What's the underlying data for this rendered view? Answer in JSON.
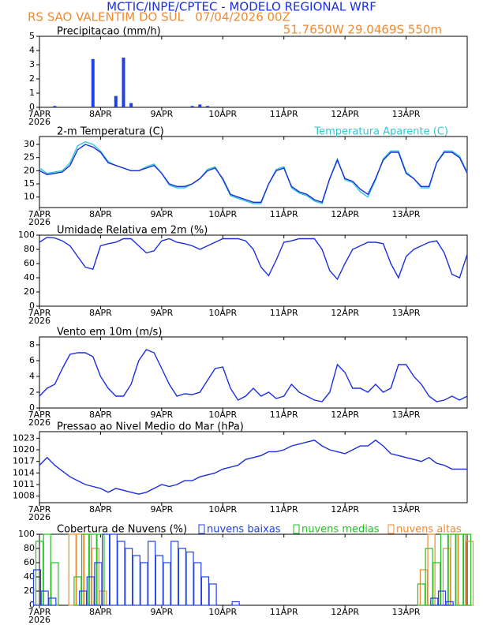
{
  "header": {
    "title": "MCTIC/INPE/CPTEC - MODELO REGIONAL WRF",
    "run": "RS SAO VALENTIM DO SUL   07/04/2026 00Z",
    "location": "51.7650W 29.0469S 550m"
  },
  "chart_data": [
    {
      "type": "bar",
      "title": "Precipitacao (mm/h)",
      "color": "#2040e8",
      "filled": true,
      "x": [
        0,
        3,
        6,
        9,
        12,
        15,
        18,
        21,
        24,
        27,
        30,
        33,
        36,
        39,
        42,
        45,
        48,
        51,
        54,
        57,
        60,
        63,
        66,
        69,
        72,
        75,
        78,
        81,
        84,
        87,
        90,
        93,
        96,
        99,
        102,
        105,
        108,
        111,
        114,
        117,
        120,
        123,
        126,
        129,
        132,
        135,
        138,
        141,
        144,
        147,
        150,
        153,
        156,
        159,
        162,
        165,
        168
      ],
      "values": [
        0,
        0,
        0.1,
        0,
        0,
        0,
        0,
        3.4,
        0,
        0,
        0.8,
        3.5,
        0.3,
        0,
        0,
        0,
        0,
        0,
        0,
        0,
        0.1,
        0.2,
        0.1,
        0,
        0,
        0,
        0,
        0,
        0,
        0,
        0,
        0,
        0,
        0,
        0,
        0,
        0,
        0,
        0,
        0,
        0,
        0,
        0,
        0,
        0,
        0,
        0,
        0,
        0,
        0,
        0,
        0,
        0,
        0,
        0,
        0,
        0
      ],
      "ylim": [
        0,
        5
      ],
      "yticks": [
        0,
        1,
        2,
        3,
        4,
        5
      ],
      "xlim": [
        0,
        168
      ],
      "xticks": [
        {
          "value": 0,
          "label": "7APR"
        },
        {
          "value": 24,
          "label": "8APR"
        },
        {
          "value": 48,
          "label": "9APR"
        },
        {
          "value": 72,
          "label": "10APR"
        },
        {
          "value": 96,
          "label": "11APR"
        },
        {
          "value": 120,
          "label": "12APR"
        },
        {
          "value": 144,
          "label": "13APR"
        }
      ],
      "year": "2026"
    },
    {
      "type": "line",
      "x": [
        0,
        3,
        6,
        9,
        12,
        15,
        18,
        21,
        24,
        27,
        30,
        33,
        36,
        39,
        42,
        45,
        48,
        51,
        54,
        57,
        60,
        63,
        66,
        69,
        72,
        75,
        78,
        81,
        84,
        87,
        90,
        93,
        96,
        99,
        102,
        105,
        108,
        111,
        114,
        117,
        120,
        123,
        126,
        129,
        132,
        135,
        138,
        141,
        144,
        147,
        150,
        153,
        156,
        159,
        162,
        165,
        168
      ],
      "series": [
        {
          "name": "2-m Temperatura (C)",
          "color": "#1a2ee0",
          "label_color": "#000000",
          "values": [
            20,
            18.5,
            19,
            19.5,
            22,
            28,
            30,
            29,
            27,
            23,
            22,
            21,
            20,
            20,
            21,
            22,
            19,
            15,
            14,
            14,
            15,
            17,
            20,
            21,
            17,
            11,
            10,
            9,
            8,
            8,
            15,
            20,
            21,
            14,
            12,
            11,
            9,
            8,
            17,
            24,
            17,
            16,
            13,
            11,
            17,
            24,
            27,
            27,
            19,
            17,
            14,
            14,
            23,
            27,
            27,
            25,
            19
          ]
        },
        {
          "name": "Temperatura Aparente (C)",
          "color": "#30c8d0",
          "label_color": "#30c8d0",
          "values": [
            21,
            19,
            19.5,
            20,
            23,
            29.5,
            31,
            30,
            27.5,
            23.5,
            22,
            21,
            20,
            20,
            21.5,
            22.5,
            19,
            14.5,
            13.5,
            13.5,
            15,
            17,
            20.5,
            21.5,
            16.5,
            10.5,
            9.5,
            8.5,
            7.5,
            7.5,
            15,
            20.5,
            21.5,
            13.5,
            11.5,
            10.5,
            8.5,
            7.5,
            17,
            24.5,
            16.5,
            15.5,
            12,
            10,
            16.5,
            24.5,
            27.5,
            27.5,
            19.5,
            17,
            13.5,
            13.5,
            23,
            27.5,
            27.5,
            25.5,
            19.5
          ]
        }
      ],
      "ylim": [
        6,
        33
      ],
      "yticks": [
        10,
        15,
        20,
        25,
        30
      ],
      "xlim": [
        0,
        168
      ],
      "xticks": [
        {
          "value": 0,
          "label": "7APR"
        },
        {
          "value": 24,
          "label": "8APR"
        },
        {
          "value": 48,
          "label": "9APR"
        },
        {
          "value": 72,
          "label": "10APR"
        },
        {
          "value": 96,
          "label": "11APR"
        },
        {
          "value": 120,
          "label": "12APR"
        },
        {
          "value": 144,
          "label": "13APR"
        }
      ],
      "year": "2026"
    },
    {
      "type": "line",
      "title": "Umidade Relativa em 2m (%)",
      "color": "#1a2ee0",
      "x": [
        0,
        3,
        6,
        9,
        12,
        15,
        18,
        21,
        24,
        27,
        30,
        33,
        36,
        39,
        42,
        45,
        48,
        51,
        54,
        57,
        60,
        63,
        66,
        69,
        72,
        75,
        78,
        81,
        84,
        87,
        90,
        93,
        96,
        99,
        102,
        105,
        108,
        111,
        114,
        117,
        120,
        123,
        126,
        129,
        132,
        135,
        138,
        141,
        144,
        147,
        150,
        153,
        156,
        159,
        162,
        165,
        168
      ],
      "values": [
        90,
        97,
        96,
        92,
        85,
        70,
        55,
        52,
        85,
        88,
        90,
        95,
        95,
        85,
        75,
        78,
        92,
        95,
        90,
        88,
        85,
        80,
        85,
        90,
        95,
        95,
        95,
        92,
        80,
        55,
        43,
        65,
        90,
        92,
        95,
        95,
        95,
        80,
        50,
        38,
        60,
        80,
        85,
        90,
        90,
        88,
        60,
        40,
        70,
        80,
        85,
        90,
        92,
        75,
        45,
        40,
        73
      ],
      "ylim": [
        0,
        100
      ],
      "yticks": [
        0,
        20,
        40,
        60,
        80,
        100
      ],
      "xlim": [
        0,
        168
      ],
      "xticks": [
        {
          "value": 0,
          "label": "7APR"
        },
        {
          "value": 24,
          "label": "8APR"
        },
        {
          "value": 48,
          "label": "9APR"
        },
        {
          "value": 72,
          "label": "10APR"
        },
        {
          "value": 96,
          "label": "11APR"
        },
        {
          "value": 120,
          "label": "12APR"
        },
        {
          "value": 144,
          "label": "13APR"
        }
      ],
      "year": "2026"
    },
    {
      "type": "line",
      "title": "Vento em 10m (m/s)",
      "color": "#1a2ee0",
      "x": [
        0,
        3,
        6,
        9,
        12,
        15,
        18,
        21,
        24,
        27,
        30,
        33,
        36,
        39,
        42,
        45,
        48,
        51,
        54,
        57,
        60,
        63,
        66,
        69,
        72,
        75,
        78,
        81,
        84,
        87,
        90,
        93,
        96,
        99,
        102,
        105,
        108,
        111,
        114,
        117,
        120,
        123,
        126,
        129,
        132,
        135,
        138,
        141,
        144,
        147,
        150,
        153,
        156,
        159,
        162,
        165,
        168
      ],
      "values": [
        1.5,
        2.5,
        3,
        5,
        6.8,
        7,
        7,
        6.5,
        4,
        2.5,
        1.5,
        1.5,
        3,
        6,
        7.4,
        7,
        5,
        3,
        1.5,
        1.8,
        1.7,
        2,
        3.5,
        5,
        5.2,
        2.5,
        1,
        1.5,
        2.5,
        1.5,
        2,
        1.2,
        1.5,
        3,
        2,
        1.5,
        1,
        0.8,
        2,
        5.5,
        4.5,
        2.5,
        2.5,
        2,
        3,
        2,
        2.5,
        5.5,
        5.5,
        4,
        3,
        1.5,
        0.8,
        1,
        1.5,
        1,
        1.5
      ],
      "ylim": [
        0,
        9
      ],
      "yticks": [
        0,
        2,
        4,
        6,
        8
      ],
      "xlim": [
        0,
        168
      ],
      "xticks": [
        {
          "value": 0,
          "label": "7APR"
        },
        {
          "value": 24,
          "label": "8APR"
        },
        {
          "value": 48,
          "label": "9APR"
        },
        {
          "value": 72,
          "label": "10APR"
        },
        {
          "value": 96,
          "label": "11APR"
        },
        {
          "value": 120,
          "label": "12APR"
        },
        {
          "value": 144,
          "label": "13APR"
        }
      ],
      "year": "2026"
    },
    {
      "type": "line",
      "title": "Pressao ao Nivel Medio do Mar (hPa)",
      "color": "#1a2ee0",
      "x": [
        0,
        3,
        6,
        9,
        12,
        15,
        18,
        21,
        24,
        27,
        30,
        33,
        36,
        39,
        42,
        45,
        48,
        51,
        54,
        57,
        60,
        63,
        66,
        69,
        72,
        75,
        78,
        81,
        84,
        87,
        90,
        93,
        96,
        99,
        102,
        105,
        108,
        111,
        114,
        117,
        120,
        123,
        126,
        129,
        132,
        135,
        138,
        141,
        144,
        147,
        150,
        153,
        156,
        159,
        162,
        165,
        168
      ],
      "values": [
        1016,
        1018,
        1016,
        1014.5,
        1013,
        1012,
        1011,
        1010.5,
        1010,
        1009,
        1010,
        1009.5,
        1009,
        1008.5,
        1009,
        1010,
        1011,
        1010.5,
        1011,
        1012,
        1012,
        1013,
        1013.5,
        1014,
        1015,
        1015.5,
        1016,
        1017.5,
        1018,
        1018.5,
        1019.5,
        1019.5,
        1020,
        1021,
        1021.5,
        1022,
        1022.5,
        1021,
        1020,
        1019.5,
        1019,
        1020,
        1021,
        1021,
        1022.5,
        1021,
        1019,
        1018.5,
        1018,
        1017.5,
        1017,
        1018,
        1016.5,
        1016,
        1015,
        1015,
        1015
      ],
      "ylim": [
        1006.3,
        1024.7
      ],
      "yticks": [
        1008,
        1011,
        1014,
        1017,
        1020,
        1023
      ],
      "xlim": [
        0,
        168
      ],
      "xticks": [
        {
          "value": 0,
          "label": "7APR"
        },
        {
          "value": 24,
          "label": "8APR"
        },
        {
          "value": 48,
          "label": "9APR"
        },
        {
          "value": 72,
          "label": "10APR"
        },
        {
          "value": 96,
          "label": "11APR"
        },
        {
          "value": 120,
          "label": "12APR"
        },
        {
          "value": 144,
          "label": "13APR"
        }
      ],
      "year": "2026"
    },
    {
      "type": "bar",
      "title": "Cobertura de Nuvens (%)",
      "filled": false,
      "x": [
        0,
        3,
        6,
        9,
        12,
        15,
        18,
        21,
        24,
        27,
        30,
        33,
        36,
        39,
        42,
        45,
        48,
        51,
        54,
        57,
        60,
        63,
        66,
        69,
        72,
        75,
        78,
        81,
        84,
        87,
        90,
        93,
        96,
        99,
        102,
        105,
        108,
        111,
        114,
        117,
        120,
        123,
        126,
        129,
        132,
        135,
        138,
        141,
        144,
        147,
        150,
        153,
        156,
        159,
        162,
        165,
        168
      ],
      "series": [
        {
          "name": "nuvens baixas",
          "color": "#2040e8",
          "values": [
            50,
            20,
            10,
            0,
            0,
            0,
            20,
            40,
            60,
            100,
            100,
            90,
            80,
            70,
            60,
            90,
            70,
            60,
            90,
            80,
            75,
            60,
            40,
            30,
            0,
            0,
            5,
            0,
            0,
            0,
            0,
            0,
            0,
            0,
            0,
            0,
            0,
            0,
            0,
            0,
            0,
            0,
            0,
            0,
            0,
            0,
            0,
            0,
            0,
            0,
            0,
            0,
            10,
            20,
            5,
            0,
            0
          ]
        },
        {
          "name": "nuvens medias",
          "color": "#22c022",
          "values": [
            90,
            100,
            60,
            0,
            0,
            40,
            100,
            100,
            100,
            0,
            0,
            0,
            0,
            0,
            0,
            0,
            0,
            0,
            0,
            0,
            0,
            0,
            0,
            0,
            0,
            0,
            0,
            0,
            0,
            0,
            0,
            0,
            0,
            0,
            0,
            0,
            0,
            0,
            0,
            0,
            0,
            0,
            0,
            0,
            0,
            0,
            0,
            0,
            0,
            0,
            30,
            80,
            60,
            100,
            100,
            100,
            100
          ]
        },
        {
          "name": "nuvens altas",
          "color": "#f08a30",
          "values": [
            0,
            0,
            0,
            0,
            100,
            100,
            100,
            80,
            20,
            0,
            0,
            0,
            0,
            0,
            0,
            0,
            0,
            0,
            0,
            0,
            0,
            0,
            0,
            0,
            0,
            0,
            0,
            0,
            0,
            0,
            0,
            0,
            0,
            0,
            0,
            0,
            0,
            0,
            0,
            0,
            0,
            0,
            0,
            0,
            0,
            0,
            0,
            0,
            0,
            0,
            50,
            100,
            0,
            80,
            100,
            100,
            90
          ]
        }
      ],
      "ylim": [
        0,
        100
      ],
      "yticks": [
        0,
        20,
        40,
        60,
        80,
        100
      ],
      "xlim": [
        0,
        168
      ],
      "xticks": [
        {
          "value": 0,
          "label": "7APR"
        },
        {
          "value": 24,
          "label": "8APR"
        },
        {
          "value": 48,
          "label": "9APR"
        },
        {
          "value": 72,
          "label": "10APR"
        },
        {
          "value": 96,
          "label": "11APR"
        },
        {
          "value": 120,
          "label": "12APR"
        },
        {
          "value": 144,
          "label": "13APR"
        }
      ],
      "year": "2026"
    }
  ]
}
